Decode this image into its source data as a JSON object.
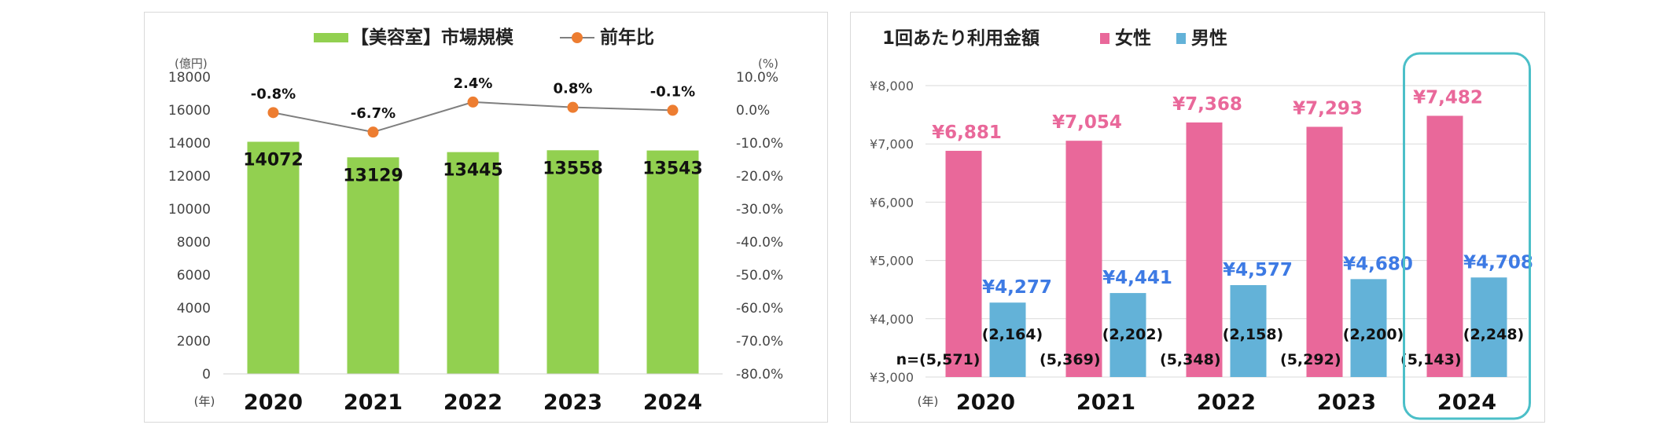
{
  "chart_data": [
    {
      "type": "bar",
      "legend": {
        "bar_label": "【美容室】市場規模",
        "line_label": "前年比",
        "placement": "top"
      },
      "y_unit": "(億円)",
      "y2_unit": "(%)",
      "x_unit": "(年)",
      "categories": [
        "2020",
        "2021",
        "2022",
        "2023",
        "2024"
      ],
      "ylim": [
        0,
        18000
      ],
      "yticks": [
        "0",
        "2000",
        "4000",
        "6000",
        "8000",
        "10000",
        "12000",
        "14000",
        "16000",
        "18000"
      ],
      "y2lim": [
        -80,
        10
      ],
      "y2ticks": [
        "-80.0%",
        "-70.0%",
        "-60.0%",
        "-50.0%",
        "-40.0%",
        "-30.0%",
        "-20.0%",
        "-10.0%",
        "0.0%",
        "10.0%"
      ],
      "series": [
        {
          "name": "【美容室】市場規模",
          "kind": "bar",
          "color": "#92d050",
          "values": [
            14072,
            13129,
            13445,
            13558,
            13543
          ],
          "labels": [
            "14072",
            "13129",
            "13445",
            "13558",
            "13543"
          ]
        },
        {
          "name": "前年比",
          "kind": "line",
          "color": "#ed7d31",
          "line_color": "#7f7f7f",
          "values": [
            -0.8,
            -6.7,
            2.4,
            0.8,
            -0.1
          ],
          "labels": [
            "-0.8%",
            "-6.7%",
            "2.4%",
            "0.8%",
            "-0.1%"
          ]
        }
      ]
    },
    {
      "type": "bar",
      "title": "1回あたり利用金額",
      "x_unit": "(年)",
      "categories": [
        "2020",
        "2021",
        "2022",
        "2023",
        "2024"
      ],
      "ylim": [
        3000,
        8000
      ],
      "yticks": [
        "¥3,000",
        "¥4,000",
        "¥5,000",
        "¥6,000",
        "¥7,000",
        "¥8,000"
      ],
      "highlight_category": "2024",
      "highlight_color": "#4bbfc8",
      "series": [
        {
          "name": "女性",
          "color": "#e9689a",
          "label_color": "#e9689a",
          "values": [
            6881,
            7054,
            7368,
            7293,
            7482
          ],
          "labels": [
            "¥6,881",
            "¥7,054",
            "¥7,368",
            "¥7,293",
            "¥7,482"
          ],
          "n_labels": [
            "n=(5,571)",
            "(5,369)",
            "(5,348)",
            "(5,292)",
            "(5,143)"
          ]
        },
        {
          "name": "男性",
          "color": "#63b2d8",
          "label_color": "#3d7ae4",
          "values": [
            4277,
            4441,
            4577,
            4680,
            4708
          ],
          "labels": [
            "¥4,277",
            "¥4,441",
            "¥4,577",
            "¥4,680",
            "¥4,708"
          ],
          "n_labels": [
            "(2,164)",
            "(2,202)",
            "(2,158)",
            "(2,200)",
            "(2,248)"
          ]
        }
      ]
    }
  ]
}
